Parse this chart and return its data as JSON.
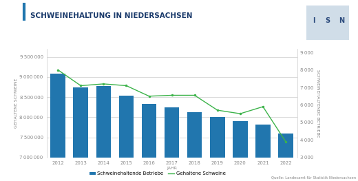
{
  "years": [
    2012,
    2013,
    2014,
    2015,
    2016,
    2017,
    2018,
    2019,
    2020,
    2021,
    2022
  ],
  "schweine": [
    9080000,
    8750000,
    8780000,
    8530000,
    8330000,
    8250000,
    8130000,
    8000000,
    7900000,
    7820000,
    7600000
  ],
  "betriebe": [
    8000,
    7100,
    7200,
    7100,
    6500,
    6550,
    6550,
    5700,
    5500,
    5900,
    3900
  ],
  "bar_color": "#2176AE",
  "line_color": "#3CB34A",
  "title": "SCHWEINEHALTUNG IN NIEDERSACHSEN",
  "ylabel_left": "GEHALTENE SCHWEINE",
  "ylabel_right": "SCHWEINEHALTENDE BETRIEBE",
  "xlabel": "JAHR",
  "ylim_left": [
    7000000,
    9700000
  ],
  "ylim_right": [
    3000,
    9200
  ],
  "yticks_left": [
    7000000,
    7500000,
    8000000,
    8500000,
    9000000,
    9500000
  ],
  "yticks_right": [
    3000,
    4000,
    5000,
    6000,
    7000,
    8000,
    9000
  ],
  "legend_label_bar": "Schweinehaltende Betriebe",
  "legend_label_line": "Gehaltene Schweine",
  "source_text": "Quelle: Landesamt für Statistik Niedersachsen",
  "title_border_color": "#2176AE",
  "bg_color": "#FFFFFF",
  "grid_color": "#CCCCCC",
  "tick_color": "#888888",
  "title_fontsize": 7.5,
  "axis_label_fontsize": 4.5,
  "tick_fontsize": 5,
  "legend_fontsize": 5,
  "source_fontsize": 3.8
}
